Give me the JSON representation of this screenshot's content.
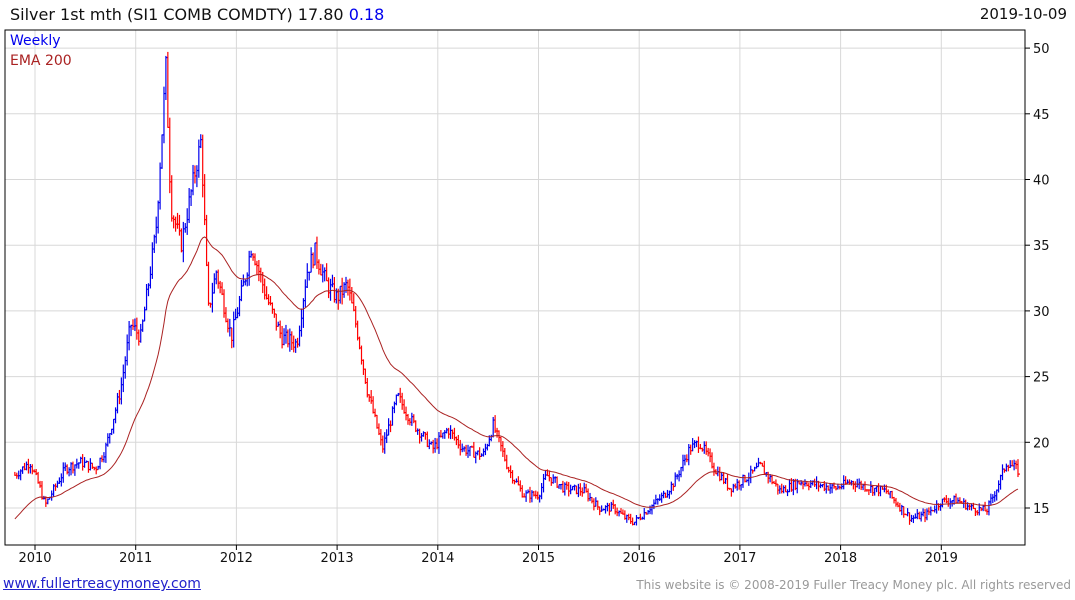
{
  "header": {
    "title": "Silver 1st mth (SI1 COMB COMDTY)",
    "last": "17.80",
    "change": "0.18",
    "date": "2019-10-09"
  },
  "footer": {
    "link": "www.fullertreacymoney.com",
    "copyright": "This website is © 2008-2019 Fuller Treacy Money plc. All rights reserved"
  },
  "colors": {
    "up": "#0000ee",
    "down": "#ff0000",
    "ema": "#aa2222",
    "grid": "#d8d8d8"
  },
  "chart_data": {
    "type": "line",
    "title": "Silver 1st mth (SI1 COMB COMDTY)",
    "legend": [
      "Weekly",
      "EMA 200"
    ],
    "legend_position": "top-left",
    "x_ticks": [
      "2010",
      "2011",
      "2012",
      "2013",
      "2014",
      "2015",
      "2016",
      "2017",
      "2018",
      "2019"
    ],
    "y_ticks": [
      15,
      20,
      25,
      30,
      35,
      40,
      45,
      50
    ],
    "xlim": [
      2009.8,
      2019.8
    ],
    "ylim": [
      12.2,
      51
    ],
    "grid": true,
    "series": [
      {
        "name": "Weekly (approx. closes)",
        "x": [
          2009.8,
          2009.95,
          2010.05,
          2010.1,
          2010.3,
          2010.45,
          2010.6,
          2010.7,
          2010.85,
          2010.95,
          2011.05,
          2011.2,
          2011.3,
          2011.35,
          2011.45,
          2011.55,
          2011.65,
          2011.72,
          2011.8,
          2011.95,
          2012.1,
          2012.15,
          2012.3,
          2012.45,
          2012.6,
          2012.7,
          2012.78,
          2012.9,
          2013.0,
          2013.1,
          2013.2,
          2013.3,
          2013.45,
          2013.6,
          2013.75,
          2013.95,
          2014.1,
          2014.25,
          2014.45,
          2014.55,
          2014.7,
          2014.85,
          2015.0,
          2015.08,
          2015.25,
          2015.45,
          2015.6,
          2015.75,
          2015.85,
          2015.95,
          2016.1,
          2016.25,
          2016.35,
          2016.5,
          2016.6,
          2016.75,
          2016.9,
          2017.1,
          2017.2,
          2017.4,
          2017.6,
          2017.75,
          2017.95,
          2018.1,
          2018.3,
          2018.45,
          2018.6,
          2018.7,
          2018.85,
          2019.0,
          2019.15,
          2019.3,
          2019.45,
          2019.55,
          2019.65,
          2019.77
        ],
        "y": [
          17.5,
          18.5,
          16.5,
          15.2,
          18,
          18.5,
          18,
          19.5,
          24,
          29,
          28,
          36,
          48.5,
          38,
          35,
          39,
          43,
          30,
          33,
          28,
          33,
          35,
          31,
          28,
          27.5,
          33,
          34.5,
          32,
          31,
          32,
          28.5,
          24,
          19.5,
          23.5,
          21.5,
          19.5,
          21,
          19.5,
          19,
          21.3,
          18,
          16,
          16,
          17.5,
          16.5,
          16.3,
          15,
          15,
          14.3,
          13.9,
          15,
          16,
          17,
          19.5,
          20,
          18,
          16.5,
          17.5,
          18.2,
          16.3,
          17,
          16.8,
          16.5,
          17,
          16.5,
          16.3,
          15,
          14.2,
          14.5,
          15.5,
          15.6,
          15,
          14.8,
          16.5,
          18.5,
          17.8
        ]
      },
      {
        "name": "EMA 200",
        "derived": "exponential moving average of weekly closes"
      }
    ]
  }
}
